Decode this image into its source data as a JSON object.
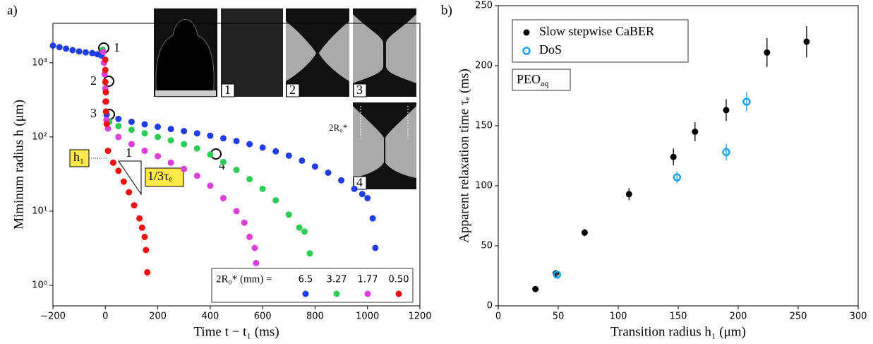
{
  "chart_data": [
    {
      "type": "scatter",
      "panel_label": "a)",
      "x_label": "Time t − t₁ (ms)",
      "y_label": "Miminum radius h (μm)",
      "xlim": [
        -200,
        1200
      ],
      "xticks": [
        {
          "value": -200,
          "label": "−200"
        },
        0,
        200,
        400,
        600,
        800,
        1000,
        1200
      ],
      "ylim": [
        0.53,
        3400
      ],
      "y_log": true,
      "yticks": [
        {
          "value": 1,
          "label": "10⁰"
        },
        {
          "value": 10,
          "label": "10¹"
        },
        {
          "value": 100,
          "label": "10²"
        },
        {
          "value": 1000,
          "label": "10³"
        }
      ],
      "legend_title": "2R₀* (mm) =",
      "series": [
        {
          "name": "6.5",
          "color": "#1f3de6",
          "marker": "filled",
          "x": [
            -200,
            -175,
            -150,
            -125,
            -100,
            -75,
            -50,
            -30,
            -15,
            5,
            50,
            100,
            150,
            200,
            250,
            300,
            350,
            400,
            450,
            500,
            550,
            600,
            650,
            700,
            750,
            800,
            850,
            900,
            950,
            980,
            1000,
            1020,
            1030
          ],
          "values": [
            1700,
            1620,
            1550,
            1480,
            1420,
            1380,
            1350,
            1300,
            1250,
            200,
            175,
            160,
            148,
            137,
            128,
            120,
            112,
            104,
            96,
            88,
            80,
            72,
            64,
            56,
            48,
            40,
            33,
            26,
            20,
            17,
            15,
            8,
            3.2
          ]
        },
        {
          "name": "3.27",
          "color": "#2ecc55",
          "marker": "filled",
          "x": [
            -10,
            15,
            50,
            100,
            150,
            200,
            250,
            300,
            350,
            400,
            450,
            500,
            550,
            600,
            650,
            700,
            740,
            760,
            780
          ],
          "values": [
            1500,
            160,
            140,
            125,
            112,
            100,
            90,
            80,
            70,
            58,
            46,
            36,
            27,
            20,
            14,
            9,
            6,
            5.3,
            2.7
          ]
        },
        {
          "name": "1.77",
          "color": "#dd3fd8",
          "marker": "filled",
          "x": [
            -8,
            -5,
            -3,
            0,
            0,
            2,
            4,
            10,
            50,
            100,
            150,
            200,
            250,
            300,
            350,
            400,
            450,
            500,
            530,
            550,
            570,
            575
          ],
          "values": [
            1400,
            1000,
            700,
            450,
            300,
            220,
            170,
            130,
            100,
            80,
            65,
            55,
            45,
            37,
            30,
            22,
            15,
            10,
            7,
            4.5,
            3.2,
            2
          ]
        },
        {
          "name": "0.50",
          "color": "#ee1111",
          "marker": "filled",
          "x": [
            0,
            0,
            0,
            2,
            3,
            3,
            5,
            10,
            30,
            50,
            70,
            90,
            110,
            130,
            140,
            150,
            155,
            160
          ],
          "values": [
            1100,
            800,
            550,
            400,
            300,
            220,
            150,
            65,
            45,
            35,
            25,
            18,
            12,
            8,
            6,
            4.5,
            3,
            1.5
          ]
        }
      ],
      "annotations": {
        "points": [
          "1",
          "2",
          "3",
          "4"
        ],
        "h_label": "h₁",
        "slope_run": "1",
        "slope_label": "1/3τₑ"
      },
      "insets": {
        "labels": [
          "1",
          "2",
          "3",
          "4"
        ],
        "width_label": "2R₀*"
      }
    },
    {
      "type": "scatter",
      "panel_label": "b)",
      "x_label": "Transition radius h₁ (μm)",
      "y_label": "Apparent relaxation time τₑ (ms)",
      "xlim": [
        0,
        300
      ],
      "xticks": [
        0,
        50,
        100,
        150,
        200,
        250,
        300
      ],
      "ylim": [
        0,
        250
      ],
      "yticks": [
        0,
        50,
        100,
        150,
        200,
        250
      ],
      "note": {
        "text": "PEO",
        "subscript": "aq"
      },
      "series": [
        {
          "name": "Slow stepwise CaBER",
          "color": "#000000",
          "marker": "filled",
          "x": [
            31,
            48,
            72,
            109,
            146,
            164,
            190,
            224,
            257
          ],
          "values": [
            14,
            27,
            61,
            93,
            124,
            145,
            163,
            211,
            220
          ],
          "errors": [
            2,
            3,
            3,
            5,
            7,
            8,
            9,
            12,
            13
          ]
        },
        {
          "name": "DoS",
          "color": "#1aa3e8",
          "marker": "open",
          "x": [
            49,
            149,
            190,
            207
          ],
          "values": [
            26,
            107,
            128,
            170
          ],
          "errors": [
            3,
            5,
            7,
            8
          ]
        }
      ]
    }
  ]
}
